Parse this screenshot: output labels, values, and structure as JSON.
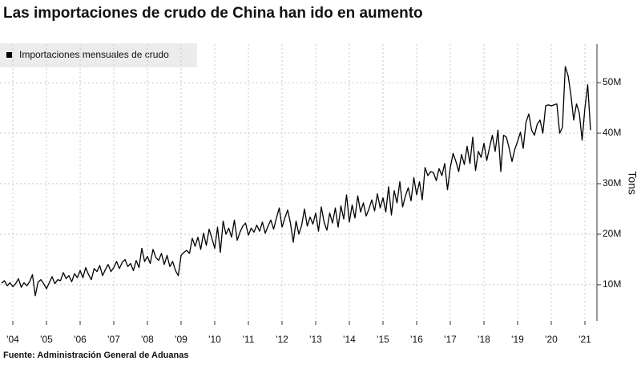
{
  "chart_data": {
    "type": "line",
    "title": "Las importaciones de crudo de China han ido en aumento",
    "source": "Fuente: Administración General de Aduanas",
    "y_axis_label": "Tons",
    "grid": true,
    "legend": "top-left",
    "categories": [
      null,
      null,
      null,
      null,
      "'04",
      null,
      null,
      null,
      null,
      null,
      null,
      null,
      null,
      null,
      null,
      null,
      "'05",
      null,
      null,
      null,
      null,
      null,
      null,
      null,
      null,
      null,
      null,
      null,
      "'06",
      null,
      null,
      null,
      null,
      null,
      null,
      null,
      null,
      null,
      null,
      null,
      "'07",
      null,
      null,
      null,
      null,
      null,
      null,
      null,
      null,
      null,
      null,
      null,
      "'08",
      null,
      null,
      null,
      null,
      null,
      null,
      null,
      null,
      null,
      null,
      null,
      "'09",
      null,
      null,
      null,
      null,
      null,
      null,
      null,
      null,
      null,
      null,
      null,
      "'10",
      null,
      null,
      null,
      null,
      null,
      null,
      null,
      null,
      null,
      null,
      null,
      "'11",
      null,
      null,
      null,
      null,
      null,
      null,
      null,
      null,
      null,
      null,
      null,
      "'12",
      null,
      null,
      null,
      null,
      null,
      null,
      null,
      null,
      null,
      null,
      null,
      "'13",
      null,
      null,
      null,
      null,
      null,
      null,
      null,
      null,
      null,
      null,
      null,
      "'14",
      null,
      null,
      null,
      null,
      null,
      null,
      null,
      null,
      null,
      null,
      null,
      "'15",
      null,
      null,
      null,
      null,
      null,
      null,
      null,
      null,
      null,
      null,
      null,
      "'16",
      null,
      null,
      null,
      null,
      null,
      null,
      null,
      null,
      null,
      null,
      null,
      "'17",
      null,
      null,
      null,
      null,
      null,
      null,
      null,
      null,
      null,
      null,
      null,
      "'18",
      null,
      null,
      null,
      null,
      null,
      null,
      null,
      null,
      null,
      null,
      null,
      "'19",
      null,
      null,
      null,
      null,
      null,
      null,
      null,
      null,
      null,
      null,
      null,
      "'20",
      null,
      null,
      null,
      null,
      null,
      null,
      null,
      null,
      null,
      null,
      null,
      "'21",
      null,
      null
    ],
    "series": [
      {
        "name": "Importaciones mensuales de crudo",
        "color": "#000000",
        "values": [
          10.3,
          10.8,
          9.8,
          10.4,
          9.6,
          10.2,
          11.2,
          9.5,
          10.4,
          9.8,
          10.6,
          12,
          7.8,
          10.5,
          11,
          10.2,
          9.2,
          10.4,
          11.6,
          10.2,
          11,
          10.8,
          12.4,
          11.2,
          11.8,
          10.6,
          12.2,
          11.4,
          12.8,
          11.4,
          13.4,
          12,
          11,
          13.2,
          12.6,
          13.8,
          11.8,
          13,
          14,
          12.6,
          13.4,
          14.6,
          13.2,
          14.4,
          15,
          13.6,
          14.2,
          12.8,
          14.8,
          13.4,
          17.2,
          14.6,
          15.6,
          14.2,
          17,
          15.4,
          14.8,
          16.2,
          14,
          15.8,
          13.6,
          14.6,
          12.8,
          11.8,
          15.8,
          16.4,
          16.8,
          16.2,
          19.2,
          17.6,
          19.4,
          17,
          20.2,
          17.8,
          21,
          19.2,
          17.2,
          21.4,
          16.4,
          22.6,
          20,
          21.2,
          19.4,
          22.8,
          18.8,
          20.4,
          21.6,
          22.2,
          19.8,
          21.2,
          20.4,
          21.8,
          20.6,
          22.4,
          20.2,
          21.6,
          22.8,
          21,
          23.2,
          25.2,
          21.4,
          23.2,
          24.8,
          22.2,
          18.4,
          22.6,
          20,
          21.8,
          25,
          21.6,
          23.4,
          22,
          24.2,
          20.6,
          25.4,
          22.4,
          20.8,
          24.2,
          22.2,
          25.2,
          21.4,
          25.6,
          23,
          27.8,
          22.4,
          25.8,
          23.2,
          27.6,
          24.4,
          26.2,
          23.6,
          25,
          26.8,
          24.6,
          28,
          25.2,
          27.2,
          24.4,
          29.4,
          23.8,
          28.6,
          26.2,
          30.4,
          25.4,
          27.6,
          29.2,
          26.6,
          31.2,
          27.8,
          30.4,
          26.8,
          33.2,
          31.6,
          32.4,
          32.2,
          30.6,
          33,
          31.6,
          34,
          28.8,
          33.2,
          36,
          34.4,
          32.4,
          35.8,
          33.8,
          37.4,
          34,
          39.2,
          32.6,
          36.4,
          35.2,
          38,
          34.6,
          37.2,
          39.6,
          36.4,
          40.6,
          32.4,
          39.6,
          39.2,
          37,
          34.4,
          36.8,
          38.4,
          40.2,
          37,
          42.2,
          43.8,
          40.6,
          39.6,
          41.8,
          42.6,
          40,
          45.4,
          45.6,
          45.4,
          45.6,
          45.8,
          40,
          41.2,
          53.2,
          51.4,
          47.6,
          42.6,
          45.8,
          44,
          38.6,
          45,
          49.6,
          40.6
        ]
      }
    ],
    "ylim": [
      3,
      57
    ],
    "yticks": [
      {
        "value": 10,
        "label": "10M"
      },
      {
        "value": 20,
        "label": "20M"
      },
      {
        "value": 30,
        "label": "30M"
      },
      {
        "value": 40,
        "label": "40M"
      },
      {
        "value": 50,
        "label": "50M"
      }
    ]
  }
}
